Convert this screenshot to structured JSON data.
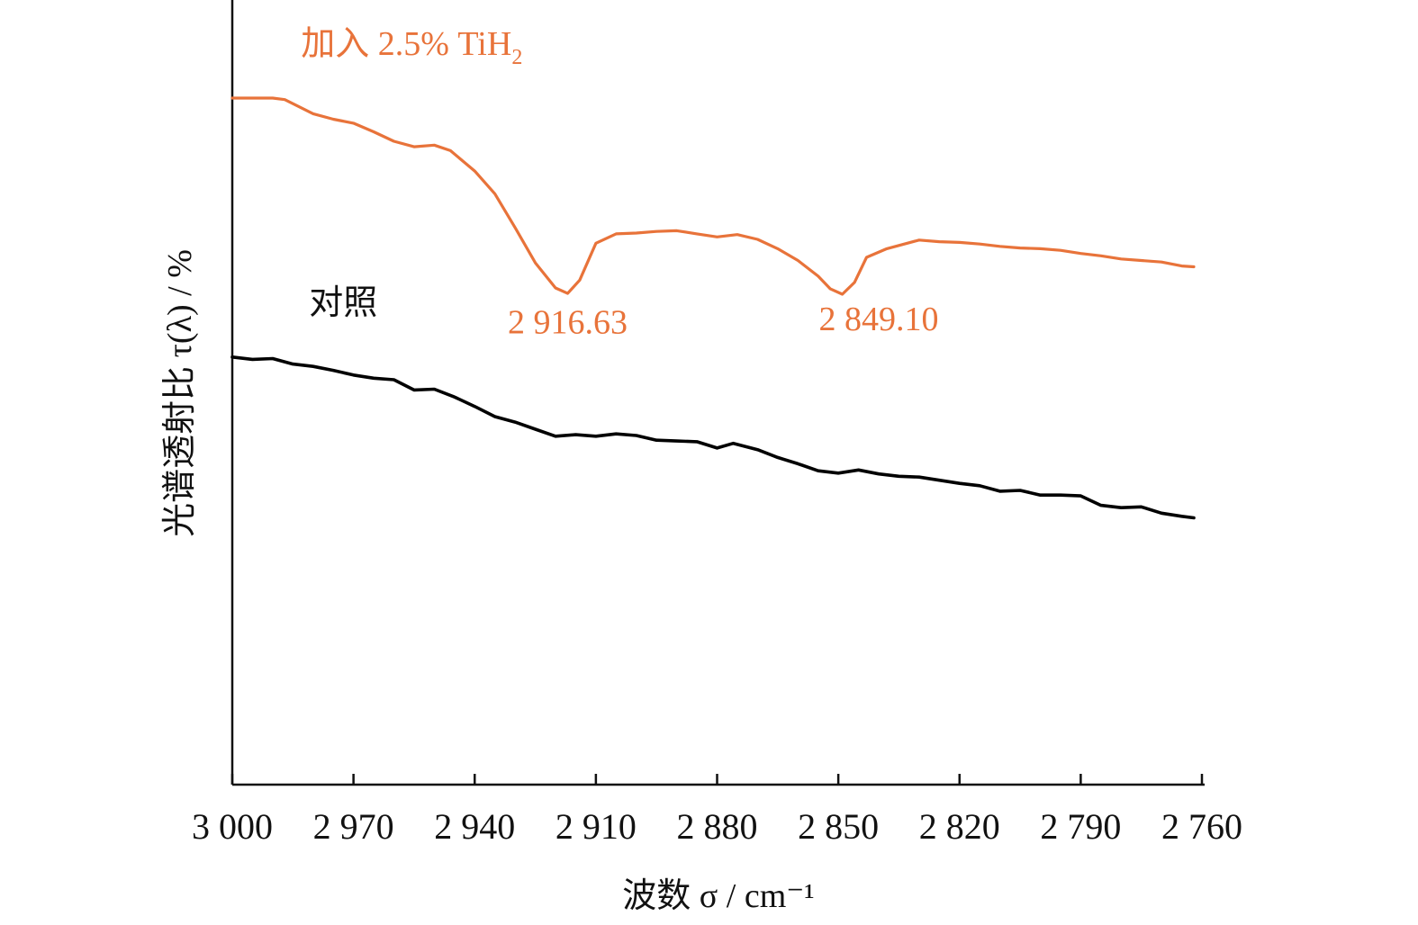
{
  "chart_data": {
    "type": "line",
    "xlabel": "波数 σ / cm⁻¹",
    "ylabel": "光谱透射比 τ(λ) / %",
    "xlim": [
      3000,
      2760
    ],
    "x_reversed": true,
    "x_ticks": [
      3000,
      2970,
      2940,
      2910,
      2880,
      2850,
      2820,
      2790,
      2760
    ],
    "x_tick_labels": [
      "3 000",
      "2 970",
      "2 940",
      "2 910",
      "2 880",
      "2 850",
      "2 820",
      "2 790",
      "2 760"
    ],
    "y_ticks_shown": false,
    "grid": false,
    "series": [
      {
        "name": "加入 2.5% TiH2",
        "color": "#e8733a",
        "x": [
          3000,
          2990,
          2987,
          2980,
          2975,
          2970,
          2965,
          2960,
          2955,
          2950,
          2946,
          2940,
          2935,
          2930,
          2925,
          2920,
          2917,
          2914,
          2910,
          2905,
          2900,
          2895,
          2890,
          2885,
          2880,
          2875,
          2870,
          2865,
          2860,
          2855,
          2852,
          2849,
          2846,
          2843,
          2838,
          2830,
          2825,
          2820,
          2815,
          2810,
          2805,
          2800,
          2795,
          2790,
          2785,
          2780,
          2775,
          2770,
          2765,
          2762
        ],
        "y": [
          87.5,
          87.5,
          87.3,
          85.5,
          84.8,
          84.3,
          83.2,
          82.0,
          81.3,
          81.5,
          80.8,
          78.2,
          75.3,
          71.0,
          66.5,
          63.3,
          62.6,
          64.3,
          69.0,
          70.2,
          70.3,
          70.5,
          70.6,
          70.2,
          69.8,
          70.1,
          69.5,
          68.3,
          66.8,
          64.8,
          63.2,
          62.5,
          64.0,
          67.2,
          68.3,
          69.4,
          69.2,
          69.1,
          68.9,
          68.6,
          68.4,
          68.3,
          68.1,
          67.7,
          67.4,
          67.0,
          66.8,
          66.6,
          66.1,
          66.0
        ]
      },
      {
        "name": "对照",
        "color": "#000000",
        "x": [
          3000,
          2995,
          2990,
          2985,
          2980,
          2975,
          2970,
          2965,
          2960,
          2955,
          2950,
          2945,
          2940,
          2935,
          2930,
          2925,
          2920,
          2915,
          2910,
          2905,
          2900,
          2895,
          2890,
          2885,
          2880,
          2876,
          2870,
          2865,
          2860,
          2855,
          2850,
          2845,
          2840,
          2835,
          2830,
          2825,
          2820,
          2815,
          2810,
          2805,
          2800,
          2795,
          2790,
          2785,
          2780,
          2775,
          2770,
          2765,
          2762
        ],
        "y": [
          54.5,
          54.2,
          54.3,
          53.6,
          53.3,
          52.8,
          52.2,
          51.8,
          51.6,
          50.3,
          50.4,
          49.4,
          48.2,
          46.9,
          46.2,
          45.3,
          44.4,
          44.6,
          44.4,
          44.7,
          44.5,
          43.9,
          43.8,
          43.7,
          42.9,
          43.5,
          42.7,
          41.7,
          40.9,
          40.0,
          39.7,
          40.1,
          39.6,
          39.3,
          39.2,
          38.8,
          38.4,
          38.1,
          37.4,
          37.5,
          36.9,
          36.9,
          36.8,
          35.6,
          35.3,
          35.4,
          34.6,
          34.2,
          34.0
        ]
      }
    ],
    "series_labels": [
      {
        "text": "加入 2.5% TiH",
        "subscript": "2",
        "color": "#e8733a",
        "x": 2983,
        "y": 93.0
      },
      {
        "text": "对照",
        "subscript": "",
        "color": "#111111",
        "x": 2981,
        "y": 60.0
      }
    ],
    "peak_labels": [
      {
        "text": "2 916.63",
        "x": 2917,
        "y": 57.5,
        "color": "#e8733a"
      },
      {
        "text": "2 849.10",
        "x": 2840,
        "y": 57.9,
        "color": "#e8733a"
      }
    ],
    "ylim": [
      0,
      100
    ]
  }
}
